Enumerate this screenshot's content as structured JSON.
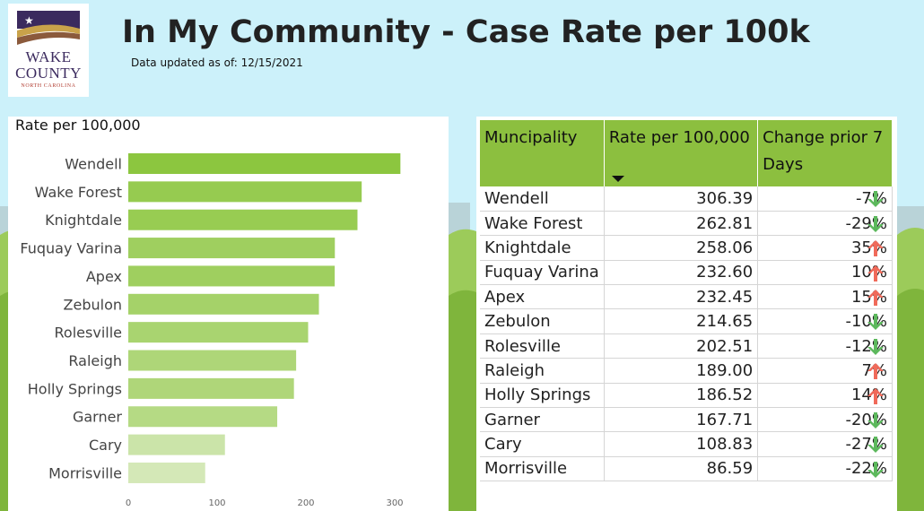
{
  "header": {
    "title": "In My Community - Case Rate per 100k",
    "updated": "Data updated as of: 12/15/2021"
  },
  "logo": {
    "line1": "WAKE",
    "line2": "COUNTY",
    "line3": "NORTH CAROLINA"
  },
  "colors": {
    "background": "#ccf1fa",
    "header_green": "#8cbf3f",
    "bar_dark": "#8cc63f",
    "bar_light": "#d4e8b7",
    "arrow_up": "#f06a5a",
    "arrow_down": "#5cb85c"
  },
  "chart_data": {
    "type": "bar",
    "orientation": "horizontal",
    "title": "Rate per 100,000",
    "categories": [
      "Wendell",
      "Wake Forest",
      "Knightdale",
      "Fuquay Varina",
      "Apex",
      "Zebulon",
      "Rolesville",
      "Raleigh",
      "Holly Springs",
      "Garner",
      "Cary",
      "Morrisville"
    ],
    "values": [
      306.39,
      262.81,
      258.06,
      232.6,
      232.45,
      214.65,
      202.51,
      189.0,
      186.52,
      167.71,
      108.83,
      86.59
    ],
    "xticks": [
      "0",
      "100",
      "200",
      "300"
    ],
    "xlim": [
      0,
      300
    ],
    "grid": false
  },
  "table": {
    "headers": [
      "Muncipality",
      "Rate per 100,000",
      "Change prior 7 Days"
    ],
    "sorted_column": "Rate per 100,000",
    "rows": [
      {
        "name": "Wendell",
        "rate": "306.39",
        "change": "-7%",
        "trend": "down"
      },
      {
        "name": "Wake Forest",
        "rate": "262.81",
        "change": "-29%",
        "trend": "down"
      },
      {
        "name": "Knightdale",
        "rate": "258.06",
        "change": "35%",
        "trend": "up"
      },
      {
        "name": "Fuquay Varina",
        "rate": "232.60",
        "change": "10%",
        "trend": "up"
      },
      {
        "name": "Apex",
        "rate": "232.45",
        "change": "15%",
        "trend": "up"
      },
      {
        "name": "Zebulon",
        "rate": "214.65",
        "change": "-10%",
        "trend": "down"
      },
      {
        "name": "Rolesville",
        "rate": "202.51",
        "change": "-12%",
        "trend": "down"
      },
      {
        "name": "Raleigh",
        "rate": "189.00",
        "change": "7%",
        "trend": "up"
      },
      {
        "name": "Holly Springs",
        "rate": "186.52",
        "change": "14%",
        "trend": "up"
      },
      {
        "name": "Garner",
        "rate": "167.71",
        "change": "-20%",
        "trend": "down"
      },
      {
        "name": "Cary",
        "rate": "108.83",
        "change": "-27%",
        "trend": "down"
      },
      {
        "name": "Morrisville",
        "rate": "86.59",
        "change": "-22%",
        "trend": "down"
      }
    ]
  }
}
